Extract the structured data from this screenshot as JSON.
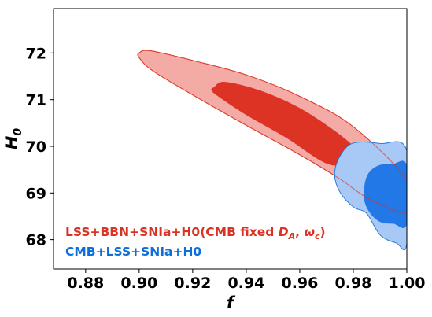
{
  "chart_data": {
    "type": "contour",
    "xlabel": "f",
    "ylabel": "H",
    "ylabel_sub": "0",
    "xlim": [
      0.868,
      1.0
    ],
    "ylim": [
      67.37,
      72.95
    ],
    "xticks": [
      0.88,
      0.9,
      0.92,
      0.94,
      0.96,
      0.98,
      1.0
    ],
    "xtick_labels": [
      "0.88",
      "0.90",
      "0.92",
      "0.94",
      "0.96",
      "0.98",
      "1.00"
    ],
    "yticks": [
      68,
      69,
      70,
      71,
      72
    ],
    "ytick_labels": [
      "68",
      "69",
      "70",
      "71",
      "72"
    ],
    "grid": false,
    "legend_placement": "lower-left",
    "series": [
      {
        "name": "LSS+BBN+SNIa+H0(CMB fixed D_A, ω_c)",
        "legend_text": "LSS+BBN+SNIa+H0(CMB fixed ",
        "legend_math": "D_A, ω_c",
        "color": "#dc3223",
        "outer_fill": "#f4aba6",
        "inner_fill": "#dd3324",
        "contours": {
          "outer_2sigma": [
            [
              0.9,
              72.0
            ],
            [
              0.904,
              72.05
            ],
            [
              0.92,
              71.84
            ],
            [
              0.94,
              71.53
            ],
            [
              0.96,
              71.07
            ],
            [
              0.98,
              70.42
            ],
            [
              1.0,
              69.27
            ],
            [
              1.0,
              68.59
            ],
            [
              0.986,
              68.87
            ],
            [
              0.975,
              69.3
            ],
            [
              0.96,
              69.82
            ],
            [
              0.94,
              70.45
            ],
            [
              0.92,
              71.1
            ],
            [
              0.905,
              71.62
            ],
            [
              0.9,
              71.9
            ]
          ],
          "inner_1sigma": [
            [
              0.928,
              71.27
            ],
            [
              0.932,
              71.38
            ],
            [
              0.945,
              71.2
            ],
            [
              0.96,
              70.82
            ],
            [
              0.975,
              70.25
            ],
            [
              0.982,
              69.86
            ],
            [
              0.98,
              69.63
            ],
            [
              0.97,
              69.63
            ],
            [
              0.955,
              70.18
            ],
            [
              0.94,
              70.67
            ],
            [
              0.93,
              71.05
            ],
            [
              0.927,
              71.2
            ]
          ]
        }
      },
      {
        "name": "CMB+LSS+SNIa+H0",
        "legend_text": "CMB+LSS+SNIa+H0",
        "color": "#0a6fdc",
        "outer_fill": "#a8c9f5",
        "inner_fill": "#2178e6",
        "contours": {
          "outer_2sigma": [
            [
              1.0,
              69.9
            ],
            [
              0.99,
              70.06
            ],
            [
              0.98,
              70.07
            ],
            [
              0.975,
              69.79
            ],
            [
              0.973,
              69.4
            ],
            [
              0.975,
              69.02
            ],
            [
              0.98,
              68.7
            ],
            [
              0.985,
              68.56
            ],
            [
              0.99,
              68.1
            ],
            [
              0.996,
              67.93
            ],
            [
              1.0,
              67.93
            ]
          ],
          "inner_1sigma": [
            [
              1.0,
              69.58
            ],
            [
              0.995,
              69.63
            ],
            [
              0.989,
              69.58
            ],
            [
              0.985,
              69.35
            ],
            [
              0.984,
              68.9
            ],
            [
              0.986,
              68.59
            ],
            [
              0.99,
              68.38
            ],
            [
              0.995,
              68.34
            ],
            [
              1.0,
              68.34
            ]
          ]
        }
      }
    ]
  }
}
